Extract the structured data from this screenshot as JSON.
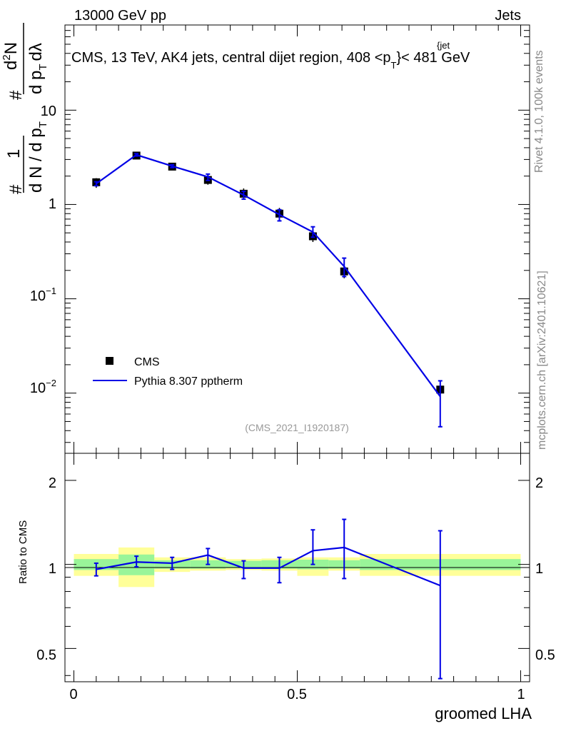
{
  "header": {
    "energy_label": "13000 GeV pp",
    "category_label": "Jets"
  },
  "title": {
    "main": "CMS, 13 TeV, AK4 jets, central dijet region, 408 <p",
    "sub_T": "T",
    "sup_jet": "{jet",
    "tail": "}< 481 GeV"
  },
  "side_labels": {
    "rivet": "Rivet 4.1.0,  100k events",
    "mcplots": "mcplots.cern.ch [arXiv:2401.10621]"
  },
  "analysis_id": "(CMS_2021_I1920187)",
  "y_axis_top": {
    "hash1": "#",
    "one": "1",
    "dN": "d N / d p",
    "sub_T1": "T",
    "hash2": "#",
    "d2N": "d",
    "sup2": "2",
    "N": "N",
    "dpT": "d p",
    "sub_T2": "T",
    "dlambda": "dλ"
  },
  "y_axis_ratio_label": "Ratio to CMS",
  "x_axis_label": "groomed LHA",
  "ticks_top": {
    "one": "1",
    "ten": "10",
    "tenth_base": "10",
    "tenth_exp": "−1",
    "hundredth_base": "10",
    "hundredth_exp": "−2"
  },
  "ticks_ratio": [
    "0.5",
    "1",
    "2"
  ],
  "ticks_x": [
    "0",
    "0.5",
    "1"
  ],
  "legend": {
    "data": "CMS",
    "mc": "Pythia 8.307 pptherm"
  },
  "colors": {
    "data": "#000000",
    "mc": "#0000e6",
    "band_inner": "#99f599",
    "band_outer": "#ffff99"
  },
  "chart_data": [
    {
      "type": "scatter",
      "panel": "main",
      "yscale": "log",
      "xlim": [
        -0.02,
        1.02
      ],
      "ylim": [
        0.0023,
        80
      ],
      "series": [
        {
          "name": "CMS",
          "x": [
            0.05,
            0.14,
            0.22,
            0.3,
            0.38,
            0.46,
            0.535,
            0.605,
            0.82
          ],
          "y": [
            1.72,
            3.3,
            2.52,
            1.82,
            1.3,
            0.8,
            0.46,
            0.195,
            0.0109
          ],
          "y_low": [
            1.5,
            3.18,
            2.42,
            1.62,
            1.12,
            0.66,
            0.4,
            0.165,
            0.0105
          ],
          "y_high": [
            1.9,
            3.42,
            2.62,
            2.02,
            1.48,
            0.92,
            0.53,
            0.23,
            0.0113
          ]
        },
        {
          "name": "Pythia 8.307 pptherm",
          "x": [
            0.05,
            0.14,
            0.22,
            0.3,
            0.38,
            0.46,
            0.535,
            0.605,
            0.82
          ],
          "y": [
            1.66,
            3.36,
            2.55,
            1.96,
            1.26,
            0.78,
            0.51,
            0.22,
            0.0092
          ],
          "y_low": [
            1.58,
            3.26,
            2.46,
            1.8,
            1.14,
            0.67,
            0.45,
            0.172,
            0.0044
          ],
          "y_high": [
            1.74,
            3.46,
            2.64,
            2.1,
            1.38,
            0.88,
            0.58,
            0.27,
            0.0135
          ]
        }
      ]
    },
    {
      "type": "line",
      "panel": "ratio",
      "yscale": "log",
      "xlim": [
        -0.02,
        1.02
      ],
      "ylim": [
        0.38,
        2.5
      ],
      "xlabel": "groomed LHA",
      "ylabel": "Ratio to CMS",
      "bands": [
        {
          "x0": 0.0,
          "x1": 0.1,
          "inner": [
            0.955,
            1.045
          ],
          "outer": [
            0.91,
            1.09
          ]
        },
        {
          "x0": 0.1,
          "x1": 0.18,
          "inner": [
            0.915,
            1.085
          ],
          "outer": [
            0.83,
            1.15
          ]
        },
        {
          "x0": 0.18,
          "x1": 0.26,
          "inner": [
            0.965,
            1.035
          ],
          "outer": [
            0.94,
            1.06
          ]
        },
        {
          "x0": 0.26,
          "x1": 0.34,
          "inner": [
            0.965,
            1.035
          ],
          "outer": [
            0.95,
            1.06
          ]
        },
        {
          "x0": 0.34,
          "x1": 0.42,
          "inner": [
            0.97,
            1.03
          ],
          "outer": [
            0.955,
            1.045
          ]
        },
        {
          "x0": 0.42,
          "x1": 0.5,
          "inner": [
            0.965,
            1.035
          ],
          "outer": [
            0.95,
            1.05
          ]
        },
        {
          "x0": 0.5,
          "x1": 0.57,
          "inner": [
            0.96,
            1.04
          ],
          "outer": [
            0.91,
            1.06
          ]
        },
        {
          "x0": 0.57,
          "x1": 0.64,
          "inner": [
            0.965,
            1.035
          ],
          "outer": [
            0.95,
            1.06
          ]
        },
        {
          "x0": 0.64,
          "x1": 1.0,
          "inner": [
            0.955,
            1.045
          ],
          "outer": [
            0.91,
            1.09
          ]
        }
      ],
      "series": [
        {
          "name": "Pythia 8.307 pptherm / CMS",
          "x": [
            0.05,
            0.14,
            0.22,
            0.3,
            0.38,
            0.46,
            0.535,
            0.605,
            0.82
          ],
          "y": [
            0.96,
            1.02,
            1.01,
            1.08,
            0.97,
            0.97,
            1.12,
            1.15,
            0.84
          ],
          "y_low": [
            0.91,
            0.98,
            0.96,
            1.0,
            0.89,
            0.86,
            1.0,
            0.89,
            0.39
          ],
          "y_high": [
            1.01,
            1.07,
            1.06,
            1.14,
            1.03,
            1.06,
            1.33,
            1.45,
            1.32
          ]
        }
      ]
    }
  ]
}
